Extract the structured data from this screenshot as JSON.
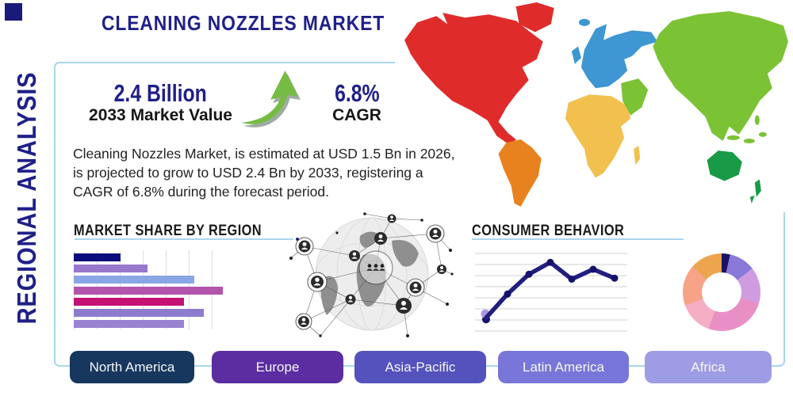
{
  "title": "CLEANING NOZZLES MARKET",
  "side_label": "REGIONAL ANALYSIS",
  "stats": {
    "market_value": "2.4 Billion",
    "market_value_label": "2033 Market Value",
    "cagr_value": "6.8%",
    "cagr_label": "CAGR"
  },
  "description": "Cleaning Nozzles Market, is estimated at USD 1.5 Bn in 2026, is projected to grow to USD 2.4 Bn by 2033, registering a CAGR of 6.8% during the forecast period.",
  "sections": {
    "market_share_title": "MARKET SHARE BY REGION",
    "consumer_behavior_title": "CONSUMER BEHAVIOR"
  },
  "region_buttons": [
    {
      "label": "North America",
      "color": "#17375e"
    },
    {
      "label": "Europe",
      "color": "#5b2da1"
    },
    {
      "label": "Asia-Pacific",
      "color": "#5452bc"
    },
    {
      "label": "Latin America",
      "color": "#7876d8"
    },
    {
      "label": "Africa",
      "color": "#9e9ce4"
    }
  ],
  "colors": {
    "accent_navy": "#1f2088",
    "text_black": "#1a1a1a",
    "panel_border": "#a7d7ec",
    "arrow_green": "#76bc43",
    "arrow_shadow": "#8e9e90",
    "map": {
      "north_america": "#e02b2b",
      "south_america": "#e8821e",
      "europe": "#3e96d2",
      "africa": "#f2c04e",
      "asia": "#7cc235",
      "australia": "#189a46"
    }
  },
  "chart_data": [
    {
      "type": "bar",
      "title": "MARKET SHARE BY REGION",
      "orientation": "horizontal",
      "values_pct": [
        29,
        46,
        75,
        93,
        69,
        81,
        69
      ],
      "colors": [
        "#0c0c7e",
        "#9878cc",
        "#8aa6e4",
        "#b254ab",
        "#c31274",
        "#8d7bce",
        "#9a82d2"
      ],
      "grid": "vertical",
      "axis_labels_visible": false
    },
    {
      "type": "line",
      "title": "CONSUMER BEHAVIOR",
      "values": [
        1.5,
        3.9,
        5.9,
        7.1,
        5.4,
        6.4,
        5.5
      ],
      "y_range": [
        0,
        8
      ],
      "gridlines": 8,
      "line_color": "#221e7e",
      "point_color": "#15126b",
      "first_point_halo_color": "#ab97dd",
      "axis_labels_visible": false
    },
    {
      "type": "pie",
      "subtype": "donut",
      "start": "top",
      "direction": "clockwise",
      "values": [
        3.5,
        11,
        15,
        26,
        14,
        17,
        13.5
      ],
      "colors": [
        "#1b1464",
        "#8a79d8",
        "#cf9ce0",
        "#e890c5",
        "#f6aec5",
        "#f6a388",
        "#eda44f"
      ],
      "labels_visible": false
    }
  ]
}
